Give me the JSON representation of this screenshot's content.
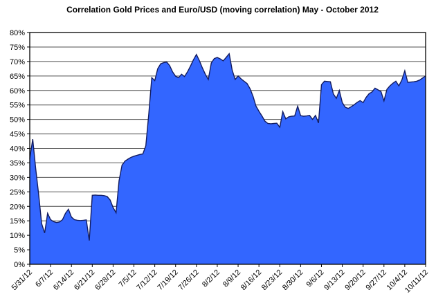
{
  "title": "Correlation Gold Prices and Euro/USD (moving correlation) May - October 2012",
  "chart_data": {
    "type": "area",
    "title": "Correlation Gold Prices and Euro/USD (moving correlation) May - October 2012",
    "xlabel": "",
    "ylabel": "",
    "ylim": [
      0,
      80
    ],
    "y_unit": "%",
    "grid": "horizontal",
    "legend": "none",
    "y_ticks": [
      "0%",
      "5%",
      "10%",
      "15%",
      "20%",
      "25%",
      "30%",
      "35%",
      "40%",
      "45%",
      "50%",
      "55%",
      "60%",
      "65%",
      "70%",
      "75%",
      "80%"
    ],
    "x_tick_labels": [
      "5/31/12",
      "6/7/12",
      "6/14/12",
      "6/21/12",
      "6/28/12",
      "7/5/12",
      "7/12/12",
      "7/19/12",
      "7/26/12",
      "8/2/12",
      "8/9/12",
      "8/16/12",
      "8/23/12",
      "8/30/12",
      "9/6/12",
      "9/13/12",
      "9/20/12",
      "9/27/12",
      "10/4/12",
      "10/11/12"
    ],
    "x_tick_every": 7,
    "colors": {
      "area_fill": "#3366FF",
      "area_edge": "#121C60",
      "gridline": "#4d4d4d",
      "axis": "#000000",
      "plot_background": "#ffffff"
    },
    "series": [
      {
        "name": "moving correlation",
        "start": "5/31/12",
        "frequency": "daily",
        "values": [
          36.5,
          43.2,
          33,
          24,
          14,
          10.8,
          17.6,
          15.4,
          14.7,
          14.4,
          14.6,
          15.4,
          17.6,
          19,
          16.3,
          15.4,
          15.2,
          15.1,
          15.2,
          15.3,
          8.2,
          23.8,
          23.9,
          23.8,
          23.8,
          23.7,
          23.4,
          22.2,
          19.6,
          17.8,
          28.8,
          34.2,
          35.6,
          36.3,
          36.9,
          37.3,
          37.6,
          37.9,
          38.1,
          40.9,
          52,
          64.4,
          63.4,
          67.5,
          69.2,
          69.6,
          69.8,
          68.6,
          66.4,
          64.9,
          64.4,
          65.6,
          64.8,
          66.4,
          68.4,
          70.6,
          72.4,
          70.3,
          67.8,
          65.6,
          63.8,
          69.5,
          71,
          71.4,
          70.9,
          70.2,
          71.4,
          72.7,
          67,
          63.8,
          65,
          64,
          63.2,
          62.4,
          60.6,
          58,
          54.6,
          52.8,
          51.2,
          49.4,
          48.6,
          48.5,
          48.6,
          48.7,
          47.3,
          52.7,
          50.2,
          50.9,
          51.1,
          51.2,
          54.6,
          51.3,
          51.1,
          51.2,
          51.4,
          50,
          51.4,
          48.8,
          62,
          63.2,
          63.1,
          63,
          58.8,
          57.3,
          60,
          55.8,
          54.2,
          53.8,
          54.4,
          55.1,
          55.9,
          56.5,
          55.8,
          57.6,
          58.9,
          59.5,
          60.8,
          60.2,
          59.6,
          56.4,
          60.4,
          61.6,
          62.5,
          63.2,
          61.6,
          63.6,
          66.8,
          62.8,
          62.9,
          63,
          63.2,
          63.6,
          64.3,
          65
        ]
      }
    ]
  }
}
